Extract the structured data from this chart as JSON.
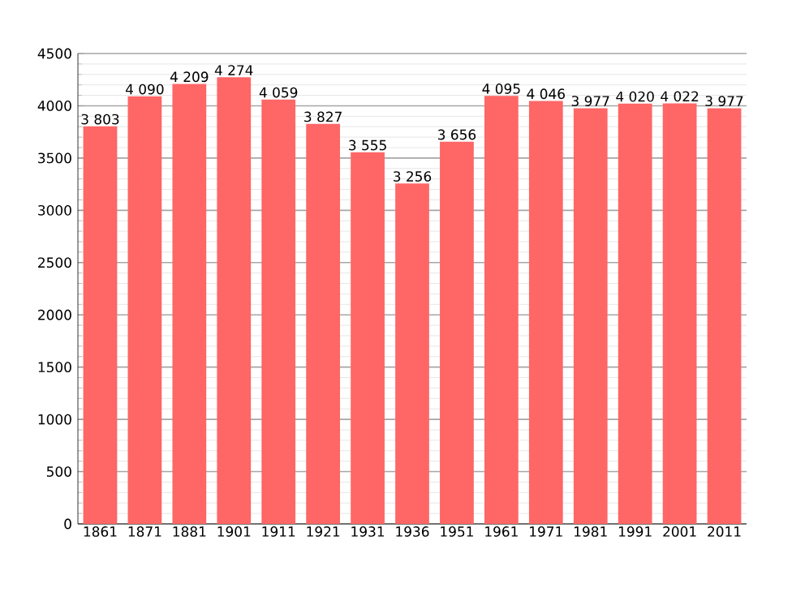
{
  "chart_data": {
    "type": "bar",
    "categories": [
      "1861",
      "1871",
      "1881",
      "1901",
      "1911",
      "1921",
      "1931",
      "1936",
      "1951",
      "1961",
      "1971",
      "1981",
      "1991",
      "2001",
      "2011"
    ],
    "values": [
      3803,
      4090,
      4209,
      4274,
      4059,
      3827,
      3555,
      3256,
      3656,
      4095,
      4046,
      3977,
      4020,
      4022,
      3977
    ],
    "value_labels": [
      "3 803",
      "4 090",
      "4 209",
      "4 274",
      "4 059",
      "3 827",
      "3 555",
      "3 256",
      "3 656",
      "4 095",
      "4 046",
      "3 977",
      "4 020",
      "4 022",
      "3 977"
    ],
    "color": "#ff6666",
    "ylim": [
      0,
      4500
    ],
    "yticks": [
      0,
      500,
      1000,
      1500,
      2000,
      2500,
      3000,
      3500,
      4000,
      4500
    ],
    "grid": "y"
  }
}
